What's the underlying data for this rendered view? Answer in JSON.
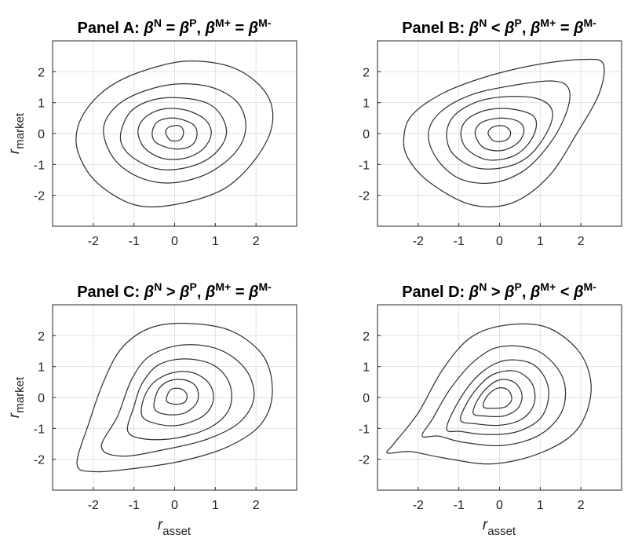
{
  "chart_data": [
    {
      "type": "contour",
      "title": {
        "prefix": "Panel A: ",
        "b1": "β",
        "s1": "N",
        "op1": " = ",
        "b2": "β",
        "s2": "P",
        "sep": ", ",
        "b3": "β",
        "s3": "M+",
        "op2": " = ",
        "b4": "β",
        "s4": "M-"
      },
      "ylabel": {
        "main": "r",
        "sub": "market"
      },
      "xlabel": {
        "main": "",
        "sub": ""
      },
      "xlim": [
        -3,
        3
      ],
      "ylim": [
        -3,
        3
      ],
      "xticks": [
        -2,
        -1,
        0,
        1,
        2
      ],
      "xtick_labels": [
        "-2",
        "-1",
        "0",
        "1",
        "2"
      ],
      "yticks": [
        -2,
        -1,
        0,
        1,
        2
      ],
      "ytick_labels": [
        "-2",
        "-1",
        "0",
        "1",
        "2"
      ],
      "grid": true,
      "contours": [
        [
          [
            -2.4,
            0.1
          ],
          [
            -2.1,
            0.9
          ],
          [
            -1.5,
            1.6
          ],
          [
            -0.6,
            2.1
          ],
          [
            0.4,
            2.35
          ],
          [
            1.5,
            2.1
          ],
          [
            2.25,
            1.3
          ],
          [
            2.4,
            0.3
          ],
          [
            2.0,
            -0.8
          ],
          [
            1.2,
            -1.8
          ],
          [
            0.0,
            -2.3
          ],
          [
            -1.0,
            -2.3
          ],
          [
            -1.9,
            -1.6
          ],
          [
            -2.35,
            -0.7
          ]
        ],
        [
          [
            -1.75,
            0.1
          ],
          [
            -1.5,
            0.8
          ],
          [
            -0.9,
            1.3
          ],
          [
            0.0,
            1.6
          ],
          [
            0.9,
            1.5
          ],
          [
            1.55,
            1.0
          ],
          [
            1.75,
            0.2
          ],
          [
            1.5,
            -0.6
          ],
          [
            0.8,
            -1.3
          ],
          [
            -0.1,
            -1.6
          ],
          [
            -0.9,
            -1.4
          ],
          [
            -1.5,
            -0.8
          ]
        ],
        [
          [
            -1.3,
            0.15
          ],
          [
            -1.05,
            0.75
          ],
          [
            -0.5,
            1.1
          ],
          [
            0.2,
            1.15
          ],
          [
            0.85,
            0.95
          ],
          [
            1.2,
            0.45
          ],
          [
            1.25,
            -0.15
          ],
          [
            0.9,
            -0.75
          ],
          [
            0.3,
            -1.1
          ],
          [
            -0.4,
            -1.15
          ],
          [
            -1.0,
            -0.8
          ],
          [
            -1.3,
            -0.35
          ]
        ],
        [
          [
            -0.9,
            0.1
          ],
          [
            -0.7,
            0.55
          ],
          [
            -0.25,
            0.8
          ],
          [
            0.3,
            0.75
          ],
          [
            0.75,
            0.45
          ],
          [
            0.9,
            0.0
          ],
          [
            0.7,
            -0.5
          ],
          [
            0.25,
            -0.8
          ],
          [
            -0.3,
            -0.8
          ],
          [
            -0.75,
            -0.45
          ]
        ],
        [
          [
            -0.55,
            0.05
          ],
          [
            -0.4,
            0.4
          ],
          [
            0.0,
            0.5
          ],
          [
            0.45,
            0.3
          ],
          [
            0.55,
            -0.05
          ],
          [
            0.4,
            -0.4
          ],
          [
            0.0,
            -0.5
          ],
          [
            -0.45,
            -0.3
          ]
        ],
        [
          [
            -0.22,
            0.05
          ],
          [
            -0.12,
            0.22
          ],
          [
            0.12,
            0.25
          ],
          [
            0.22,
            0.05
          ],
          [
            0.14,
            -0.2
          ],
          [
            -0.1,
            -0.22
          ]
        ]
      ]
    },
    {
      "type": "contour",
      "title": {
        "prefix": "Panel B: ",
        "b1": "β",
        "s1": "N",
        "op1": " < ",
        "b2": "β",
        "s2": "P",
        "sep": ", ",
        "b3": "β",
        "s3": "M+",
        "op2": " = ",
        "b4": "β",
        "s4": "M-"
      },
      "ylabel": {
        "main": "",
        "sub": ""
      },
      "xlabel": {
        "main": "",
        "sub": ""
      },
      "xlim": [
        -3,
        3
      ],
      "ylim": [
        -3,
        3
      ],
      "xticks": [
        -2,
        -1,
        0,
        1,
        2
      ],
      "xtick_labels": [
        "-2",
        "-1",
        "0",
        "1",
        "2"
      ],
      "yticks": [
        -2,
        -1,
        0,
        1,
        2
      ],
      "ytick_labels": [
        "-2",
        "-1",
        "0",
        "1",
        "2"
      ],
      "grid": true,
      "contours": [
        [
          [
            -2.35,
            -0.1
          ],
          [
            -2.15,
            0.6
          ],
          [
            -1.4,
            1.3
          ],
          [
            -0.3,
            1.85
          ],
          [
            1.0,
            2.25
          ],
          [
            2.1,
            2.4
          ],
          [
            2.55,
            2.25
          ],
          [
            2.45,
            1.3
          ],
          [
            1.9,
            0.0
          ],
          [
            1.2,
            -1.4
          ],
          [
            0.3,
            -2.25
          ],
          [
            -0.7,
            -2.3
          ],
          [
            -1.7,
            -1.6
          ],
          [
            -2.25,
            -0.8
          ]
        ],
        [
          [
            -1.75,
            0.0
          ],
          [
            -1.45,
            0.7
          ],
          [
            -0.7,
            1.25
          ],
          [
            0.3,
            1.55
          ],
          [
            1.3,
            1.7
          ],
          [
            1.7,
            1.45
          ],
          [
            1.65,
            0.7
          ],
          [
            1.25,
            -0.3
          ],
          [
            0.6,
            -1.2
          ],
          [
            -0.2,
            -1.6
          ],
          [
            -1.0,
            -1.45
          ],
          [
            -1.55,
            -0.8
          ]
        ],
        [
          [
            -1.3,
            0.0
          ],
          [
            -1.1,
            0.6
          ],
          [
            -0.5,
            1.05
          ],
          [
            0.3,
            1.2
          ],
          [
            1.0,
            1.1
          ],
          [
            1.3,
            0.7
          ],
          [
            1.15,
            0.0
          ],
          [
            0.7,
            -0.75
          ],
          [
            0.1,
            -1.1
          ],
          [
            -0.6,
            -1.1
          ],
          [
            -1.15,
            -0.65
          ]
        ],
        [
          [
            -0.95,
            0.0
          ],
          [
            -0.8,
            0.45
          ],
          [
            -0.35,
            0.75
          ],
          [
            0.25,
            0.8
          ],
          [
            0.8,
            0.6
          ],
          [
            0.9,
            0.2
          ],
          [
            0.7,
            -0.35
          ],
          [
            0.3,
            -0.75
          ],
          [
            -0.3,
            -0.85
          ],
          [
            -0.8,
            -0.5
          ]
        ],
        [
          [
            -0.6,
            0.0
          ],
          [
            -0.45,
            0.35
          ],
          [
            0.0,
            0.5
          ],
          [
            0.45,
            0.4
          ],
          [
            0.6,
            0.1
          ],
          [
            0.45,
            -0.3
          ],
          [
            0.05,
            -0.55
          ],
          [
            -0.4,
            -0.45
          ]
        ],
        [
          [
            -0.28,
            0.0
          ],
          [
            -0.18,
            0.2
          ],
          [
            0.1,
            0.25
          ],
          [
            0.27,
            0.05
          ],
          [
            0.18,
            -0.2
          ],
          [
            -0.12,
            -0.25
          ]
        ]
      ]
    },
    {
      "type": "contour",
      "title": {
        "prefix": "Panel C: ",
        "b1": "β",
        "s1": "N",
        "op1": " > ",
        "b2": "β",
        "s2": "P",
        "sep": ", ",
        "b3": "β",
        "s3": "M+",
        "op2": " = ",
        "b4": "β",
        "s4": "M-"
      },
      "ylabel": {
        "main": "r",
        "sub": "market"
      },
      "xlabel": {
        "main": "r",
        "sub": "asset"
      },
      "xlim": [
        -3,
        3
      ],
      "ylim": [
        -3,
        3
      ],
      "xticks": [
        -2,
        -1,
        0,
        1,
        2
      ],
      "xtick_labels": [
        "-2",
        "-1",
        "0",
        "1",
        "2"
      ],
      "yticks": [
        -2,
        -1,
        0,
        1,
        2
      ],
      "ytick_labels": [
        "-2",
        "-1",
        "0",
        "1",
        "2"
      ],
      "grid": true,
      "contours": [
        [
          [
            -2.4,
            -2.15
          ],
          [
            -2.0,
            -2.4
          ],
          [
            -1.0,
            -2.3
          ],
          [
            0.2,
            -2.05
          ],
          [
            1.3,
            -1.6
          ],
          [
            2.1,
            -0.9
          ],
          [
            2.4,
            0.1
          ],
          [
            2.2,
            1.3
          ],
          [
            1.4,
            2.15
          ],
          [
            0.3,
            2.4
          ],
          [
            -0.6,
            2.25
          ],
          [
            -1.3,
            1.6
          ],
          [
            -1.75,
            0.5
          ],
          [
            -2.1,
            -0.8
          ]
        ],
        [
          [
            -1.8,
            -1.6
          ],
          [
            -1.3,
            -1.9
          ],
          [
            -0.3,
            -1.7
          ],
          [
            0.8,
            -1.35
          ],
          [
            1.6,
            -0.8
          ],
          [
            1.95,
            0.0
          ],
          [
            1.75,
            0.9
          ],
          [
            1.1,
            1.55
          ],
          [
            0.2,
            1.7
          ],
          [
            -0.6,
            1.35
          ],
          [
            -1.05,
            0.6
          ],
          [
            -1.4,
            -0.6
          ]
        ],
        [
          [
            -1.15,
            -1.1
          ],
          [
            -0.7,
            -1.35
          ],
          [
            0.1,
            -1.3
          ],
          [
            0.9,
            -0.95
          ],
          [
            1.35,
            -0.35
          ],
          [
            1.35,
            0.45
          ],
          [
            0.95,
            1.05
          ],
          [
            0.25,
            1.25
          ],
          [
            -0.4,
            1.05
          ],
          [
            -0.8,
            0.45
          ],
          [
            -1.0,
            -0.3
          ]
        ],
        [
          [
            -0.8,
            -0.6
          ],
          [
            -0.45,
            -0.85
          ],
          [
            0.1,
            -0.9
          ],
          [
            0.7,
            -0.6
          ],
          [
            0.95,
            -0.1
          ],
          [
            0.85,
            0.45
          ],
          [
            0.45,
            0.8
          ],
          [
            -0.05,
            0.8
          ],
          [
            -0.5,
            0.5
          ],
          [
            -0.75,
            0.0
          ]
        ],
        [
          [
            -0.5,
            -0.35
          ],
          [
            -0.2,
            -0.55
          ],
          [
            0.25,
            -0.5
          ],
          [
            0.55,
            -0.15
          ],
          [
            0.55,
            0.3
          ],
          [
            0.3,
            0.55
          ],
          [
            -0.1,
            0.55
          ],
          [
            -0.4,
            0.25
          ]
        ],
        [
          [
            -0.2,
            -0.1
          ],
          [
            0.0,
            -0.22
          ],
          [
            0.25,
            -0.15
          ],
          [
            0.3,
            0.1
          ],
          [
            0.15,
            0.28
          ],
          [
            -0.1,
            0.25
          ]
        ]
      ]
    },
    {
      "type": "contour",
      "title": {
        "prefix": "Panel D: ",
        "b1": "β",
        "s1": "N",
        "op1": " > ",
        "b2": "β",
        "s2": "P",
        "sep": ", ",
        "b3": "β",
        "s3": "M+",
        "op2": " < ",
        "b4": "β",
        "s4": "M-"
      },
      "ylabel": {
        "main": "",
        "sub": ""
      },
      "xlabel": {
        "main": "r",
        "sub": "asset"
      },
      "xlim": [
        -3,
        3
      ],
      "ylim": [
        -3,
        3
      ],
      "xticks": [
        -2,
        -1,
        0,
        1,
        2
      ],
      "xtick_labels": [
        "-2",
        "-1",
        "0",
        "1",
        "2"
      ],
      "yticks": [
        -2,
        -1,
        0,
        1,
        2
      ],
      "ytick_labels": [
        "-2",
        "-1",
        "0",
        "1",
        "2"
      ],
      "grid": true,
      "contours": [
        [
          [
            -2.75,
            -1.8
          ],
          [
            -2.2,
            -1.75
          ],
          [
            -1.4,
            -1.95
          ],
          [
            -0.2,
            -2.15
          ],
          [
            1.0,
            -1.8
          ],
          [
            1.9,
            -1.05
          ],
          [
            2.25,
            0.2
          ],
          [
            2.0,
            1.4
          ],
          [
            1.2,
            2.25
          ],
          [
            0.2,
            2.35
          ],
          [
            -0.7,
            1.95
          ],
          [
            -1.4,
            0.9
          ],
          [
            -2.0,
            -0.5
          ],
          [
            -2.6,
            -1.5
          ]
        ],
        [
          [
            -1.9,
            -1.25
          ],
          [
            -1.5,
            -1.25
          ],
          [
            -0.9,
            -1.45
          ],
          [
            0.1,
            -1.55
          ],
          [
            1.0,
            -1.2
          ],
          [
            1.55,
            -0.4
          ],
          [
            1.55,
            0.65
          ],
          [
            0.95,
            1.5
          ],
          [
            0.05,
            1.65
          ],
          [
            -0.6,
            1.2
          ],
          [
            -1.2,
            0.3
          ],
          [
            -1.65,
            -0.7
          ]
        ],
        [
          [
            -1.3,
            -1.0
          ],
          [
            -0.95,
            -1.1
          ],
          [
            -0.3,
            -1.2
          ],
          [
            0.45,
            -1.1
          ],
          [
            1.05,
            -0.6
          ],
          [
            1.2,
            0.3
          ],
          [
            0.85,
            1.05
          ],
          [
            0.15,
            1.2
          ],
          [
            -0.45,
            0.8
          ],
          [
            -0.95,
            0.0
          ]
        ],
        [
          [
            -0.95,
            -0.75
          ],
          [
            -0.6,
            -0.85
          ],
          [
            0.0,
            -0.9
          ],
          [
            0.55,
            -0.7
          ],
          [
            0.85,
            -0.2
          ],
          [
            0.8,
            0.45
          ],
          [
            0.4,
            0.85
          ],
          [
            -0.15,
            0.75
          ],
          [
            -0.55,
            0.3
          ],
          [
            -0.85,
            -0.3
          ]
        ],
        [
          [
            -0.65,
            -0.5
          ],
          [
            -0.35,
            -0.6
          ],
          [
            0.1,
            -0.6
          ],
          [
            0.45,
            -0.35
          ],
          [
            0.55,
            0.1
          ],
          [
            0.35,
            0.5
          ],
          [
            -0.05,
            0.55
          ],
          [
            -0.45,
            0.1
          ]
        ],
        [
          [
            -0.4,
            -0.3
          ],
          [
            -0.15,
            -0.35
          ],
          [
            0.15,
            -0.3
          ],
          [
            0.3,
            -0.05
          ],
          [
            0.2,
            0.25
          ],
          [
            -0.05,
            0.3
          ],
          [
            -0.3,
            0.05
          ]
        ]
      ]
    }
  ]
}
